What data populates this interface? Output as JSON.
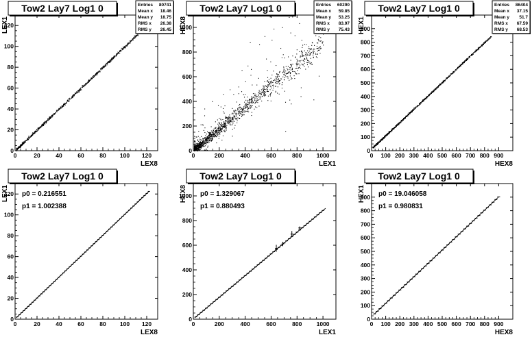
{
  "chart_data": [
    {
      "type": "scatter",
      "title": "Tow2 Lay7 Log1 0",
      "xlabel": "LEX8",
      "ylabel": "LEX1",
      "xlim": [
        0,
        130
      ],
      "ylim": [
        0,
        130
      ],
      "xticks": [
        0,
        20,
        40,
        60,
        80,
        100,
        120
      ],
      "yticks": [
        0,
        20,
        40,
        60,
        80,
        100,
        120
      ],
      "stats": [
        {
          "label": "Entries",
          "value": "80741"
        },
        {
          "label": "Mean x",
          "value": "18.46"
        },
        {
          "label": "Mean y",
          "value": "18.75"
        },
        {
          "label": "RMS x",
          "value": "26.38"
        },
        {
          "label": "RMS y",
          "value": "26.45"
        }
      ],
      "relation": {
        "slope": 1.0,
        "intercept": 0.2,
        "x_min": 1,
        "x_max": 121,
        "spread": 0.6
      }
    },
    {
      "type": "scatter",
      "title": "Tow2 Lay7 Log1 0",
      "xlabel": "LEX1",
      "ylabel": "HEX8",
      "xlim": [
        0,
        1100
      ],
      "ylim": [
        0,
        1100
      ],
      "xticks": [
        0,
        200,
        400,
        600,
        800,
        1000
      ],
      "yticks": [
        0,
        200,
        400,
        600,
        800,
        1000
      ],
      "stats": [
        {
          "label": "Entries",
          "value": "60290"
        },
        {
          "label": "Mean x",
          "value": "59.85"
        },
        {
          "label": "Mean y",
          "value": "53.25"
        },
        {
          "label": "RMS x",
          "value": "83.97"
        },
        {
          "label": "RMS y",
          "value": "75.43"
        }
      ],
      "relation": {
        "slope": 0.88,
        "intercept": 1.3,
        "x_min": 5,
        "x_max": 1000,
        "spread": 15,
        "outlier_fraction": 0.12
      }
    },
    {
      "type": "scatter",
      "title": "Tow2 Lay7 Log1 0",
      "xlabel": "HEX8",
      "ylabel": "HEX1",
      "xlim": [
        0,
        1000
      ],
      "ylim": [
        0,
        1000
      ],
      "xticks": [
        0,
        100,
        200,
        300,
        400,
        500,
        600,
        700,
        800,
        900
      ],
      "yticks": [
        0,
        100,
        200,
        300,
        400,
        500,
        600,
        700,
        800,
        900
      ],
      "stats": [
        {
          "label": "Entries",
          "value": "86404"
        },
        {
          "label": "Mean x",
          "value": "37.15"
        },
        {
          "label": "Mean y",
          "value": "51.7"
        },
        {
          "label": "RMS x",
          "value": "67.59"
        },
        {
          "label": "RMS y",
          "value": "68.53"
        }
      ],
      "relation": {
        "slope": 0.98,
        "intercept": 19,
        "x_min": 10,
        "x_max": 850,
        "spread": 6
      }
    },
    {
      "type": "line",
      "title": "Tow2 Lay7 Log1 0",
      "xlabel": "LEX8",
      "ylabel": "LEX1",
      "xlim": [
        0,
        130
      ],
      "ylim": [
        0,
        130
      ],
      "xticks": [
        0,
        20,
        40,
        60,
        80,
        100,
        120
      ],
      "yticks": [
        0,
        20,
        40,
        60,
        80,
        100,
        120
      ],
      "fit": {
        "p0": 0.216551,
        "p1": 1.002388,
        "x_range": [
          1,
          122
        ]
      },
      "fit_text": [
        "p0 = 0.216551",
        "p1 = 1.002388"
      ],
      "profile": {
        "x_start": 2,
        "x_end": 122,
        "step": 2,
        "error_x": 1
      }
    },
    {
      "type": "line",
      "title": "Tow2 Lay7 Log1 0",
      "xlabel": "LEX1",
      "ylabel": "HEX8",
      "xlim": [
        0,
        1100
      ],
      "ylim": [
        0,
        1100
      ],
      "xticks": [
        0,
        200,
        400,
        600,
        800,
        1000
      ],
      "yticks": [
        0,
        200,
        400,
        600,
        800,
        1000
      ],
      "fit": {
        "p0": 1.329067,
        "p1": 0.880493,
        "x_range": [
          10,
          1020
        ]
      },
      "fit_text": [
        "p0 = 1.329067",
        "p1 = 0.880493"
      ],
      "profile": {
        "x_start": 20,
        "x_end": 1000,
        "step": 20,
        "error_x": 10
      },
      "profile_errors": [
        {
          "x": 640,
          "y": 575,
          "err": 28
        },
        {
          "x": 690,
          "y": 610,
          "err": 18
        },
        {
          "x": 760,
          "y": 690,
          "err": 25
        },
        {
          "x": 820,
          "y": 740,
          "err": 12
        }
      ]
    },
    {
      "type": "line",
      "title": "Tow2 Lay7 Log1 0",
      "xlabel": "HEX8",
      "ylabel": "HEX1",
      "xlim": [
        0,
        1000
      ],
      "ylim": [
        0,
        1000
      ],
      "xticks": [
        0,
        100,
        200,
        300,
        400,
        500,
        600,
        700,
        800,
        900
      ],
      "yticks": [
        0,
        100,
        200,
        300,
        400,
        500,
        600,
        700,
        800,
        900
      ],
      "fit": {
        "p0": 19.046058,
        "p1": 0.980831,
        "x_range": [
          20,
          900
        ]
      },
      "fit_text": [
        "p0 = 19.046058",
        "p1 = 0.980831"
      ],
      "profile": {
        "x_start": 20,
        "x_end": 900,
        "step": 20,
        "error_x": 10
      }
    }
  ]
}
